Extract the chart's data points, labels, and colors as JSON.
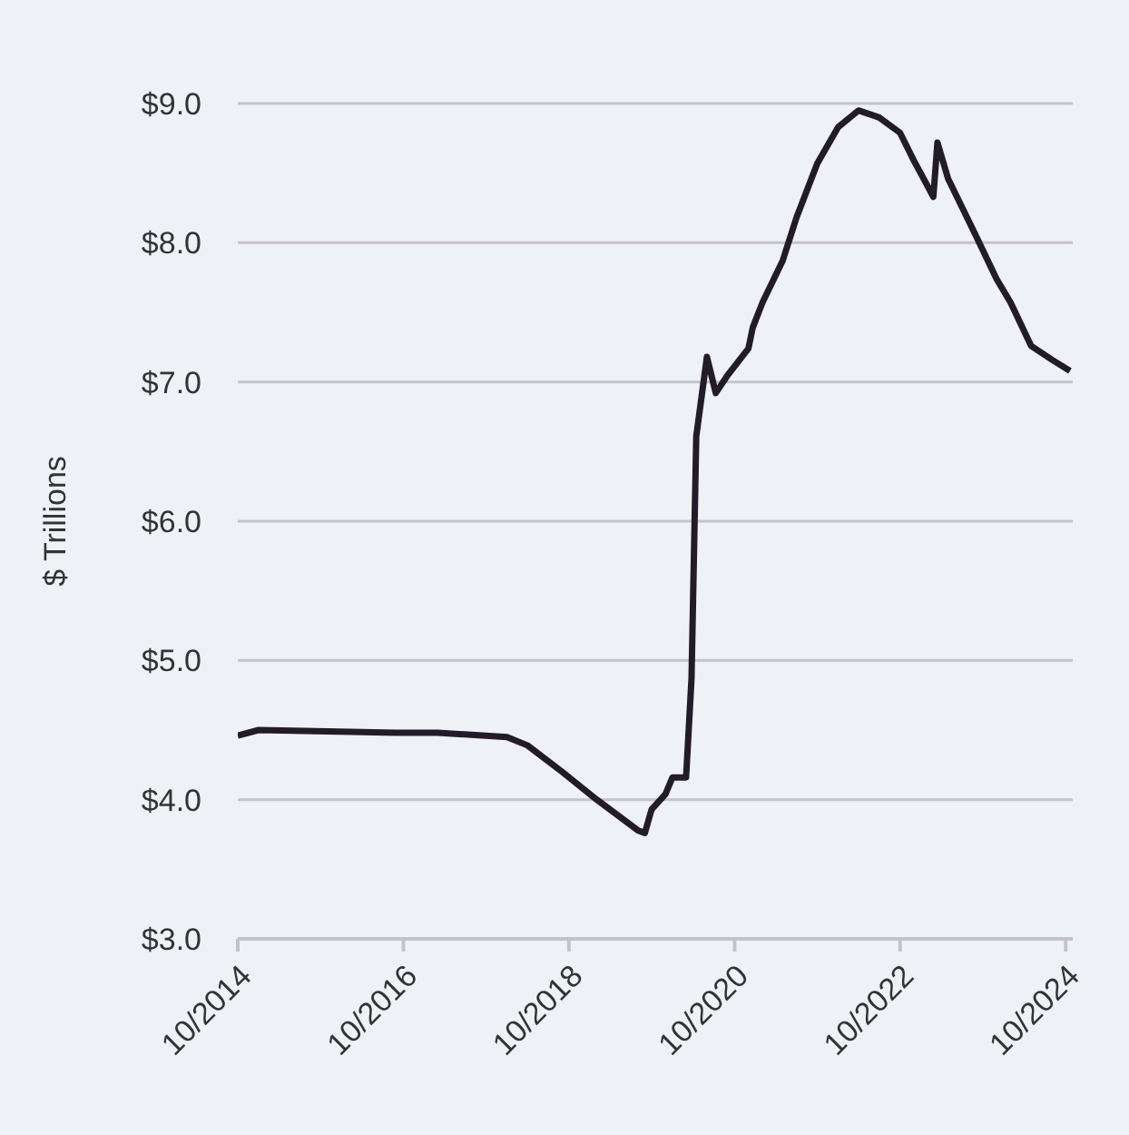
{
  "chart_data": {
    "type": "line",
    "ylabel": "$ Trillions",
    "x": [
      "2014-10",
      "2015-01",
      "2016-09",
      "2017-03",
      "2018-01",
      "2018-04",
      "2018-09",
      "2019-02",
      "2019-08",
      "2019-09",
      "2019-10",
      "2019-12",
      "2020-01",
      "2020-03-01",
      "2020-03-25",
      "2020-04-15",
      "2020-06-01",
      "2020-07-10",
      "2020-09",
      "2020-12",
      "2020-12-20",
      "2021-02",
      "2021-05",
      "2021-07",
      "2021-10",
      "2022-01",
      "2022-04",
      "2022-07",
      "2022-10",
      "2022-12",
      "2023-02-25",
      "2023-03-15",
      "2023-05",
      "2023-09",
      "2023-12",
      "2024-02",
      "2024-05",
      "2024-08",
      "2024-10-20"
    ],
    "series": [
      {
        "color": "#231b27",
        "values": [
          4.46,
          4.5,
          4.48,
          4.48,
          4.45,
          4.39,
          4.2,
          4.0,
          3.78,
          3.76,
          3.93,
          4.04,
          4.16,
          4.16,
          4.87,
          6.61,
          7.18,
          6.92,
          7.05,
          7.24,
          7.39,
          7.57,
          7.87,
          8.18,
          8.57,
          8.83,
          8.95,
          8.9,
          8.79,
          8.59,
          8.33,
          8.72,
          8.46,
          8.05,
          7.74,
          7.57,
          7.26,
          7.16,
          7.08
        ]
      }
    ],
    "xlim": [
      "2014-10",
      "2024-11"
    ],
    "xticks": [
      {
        "value": "2014-10",
        "label": "10/2014"
      },
      {
        "value": "2016-10",
        "label": "10/2016"
      },
      {
        "value": "2018-10",
        "label": "10/2018"
      },
      {
        "value": "2020-10",
        "label": "10/2020"
      },
      {
        "value": "2022-10",
        "label": "10/2022"
      },
      {
        "value": "2024-10",
        "label": "10/2024"
      }
    ],
    "ylim": [
      3,
      9
    ],
    "yticks": [
      {
        "value": 3,
        "label": "$3.0"
      },
      {
        "value": 4,
        "label": "$4.0"
      },
      {
        "value": 5,
        "label": "$5.0"
      },
      {
        "value": 6,
        "label": "$6.0"
      },
      {
        "value": 7,
        "label": "$7.0"
      },
      {
        "value": 8,
        "label": "$8.0"
      },
      {
        "value": 9,
        "label": "$9.0"
      }
    ],
    "grid": "y",
    "legend": false,
    "marker": "none",
    "line_style": "solid"
  }
}
